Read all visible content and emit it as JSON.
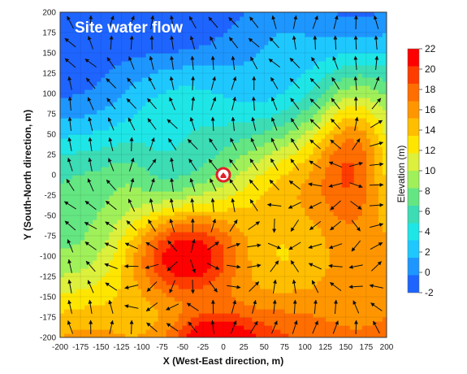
{
  "chart_data": {
    "type": "heatmap",
    "title": "Site water flow",
    "xlabel": "X (West-East direction, m)",
    "ylabel": "Y (South-North direction, m)",
    "colorbar_label": "Elevation (m)",
    "xlim": [
      -200,
      200
    ],
    "ylim": [
      -200,
      200
    ],
    "x_ticks": [
      -200,
      -175,
      -150,
      -125,
      -100,
      -75,
      -50,
      -25,
      0,
      25,
      50,
      75,
      100,
      125,
      150,
      175,
      200
    ],
    "y_ticks": [
      200,
      175,
      150,
      125,
      100,
      75,
      50,
      25,
      0,
      -25,
      -50,
      -75,
      -100,
      -125,
      -150,
      -175,
      -200
    ],
    "color_range": [
      -2,
      22
    ],
    "colorbar_ticks": [
      22,
      20,
      18,
      16,
      14,
      12,
      10,
      8,
      6,
      4,
      2,
      0,
      -2
    ],
    "colors": [
      "#1e64ff",
      "#1e96ff",
      "#1ec8ff",
      "#1ee6e6",
      "#3cdcb4",
      "#64e682",
      "#a0f05a",
      "#dcf03c",
      "#ffe600",
      "#ffbe00",
      "#ff9600",
      "#ff6e00",
      "#ff3c00",
      "#ff0000"
    ],
    "grid": true,
    "marker": {
      "x": 0,
      "y": 0,
      "icon": "location-pin-icon"
    },
    "features": {
      "bumps": [
        {
          "x": -45,
          "y": -95,
          "h": 9.5,
          "sx": 70,
          "sy": 55
        },
        {
          "x": 160,
          "y": 20,
          "h": 9.0,
          "sx": 45,
          "sy": 80
        },
        {
          "x": -15,
          "y": -205,
          "h": 8.0,
          "sx": 50,
          "sy": 35
        },
        {
          "x": 110,
          "y": 10,
          "h": 3.0,
          "sx": 60,
          "sy": 70
        },
        {
          "x": 60,
          "y": -40,
          "h": 2.5,
          "sx": 80,
          "sy": 60
        },
        {
          "x": -115,
          "y": 0,
          "h": 1.5,
          "sx": 30,
          "sy": 40
        }
      ],
      "base": {
        "c": 7.5,
        "ax": 0.012,
        "ay": -0.045,
        "wave": 1.2
      }
    }
  }
}
